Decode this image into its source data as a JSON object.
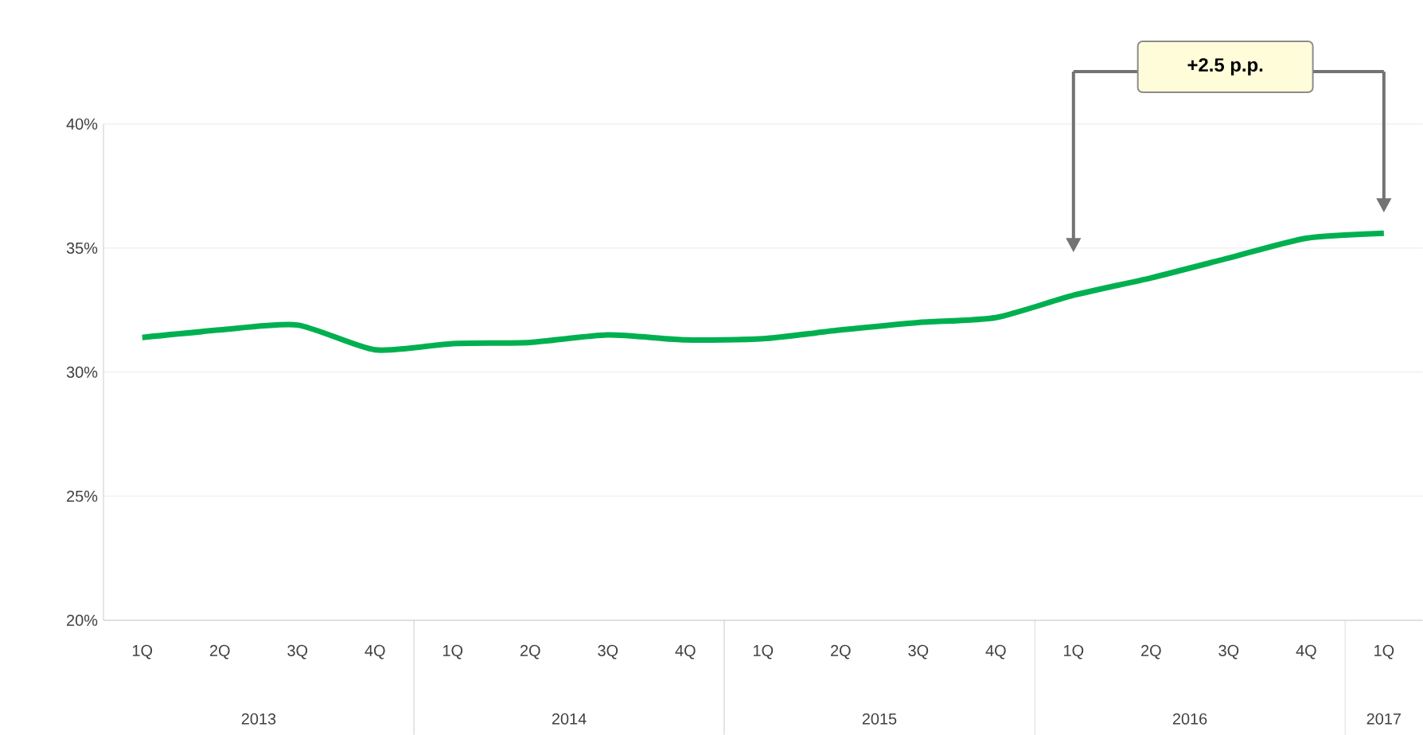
{
  "chart_data": {
    "type": "line",
    "categories": [
      "1Q",
      "2Q",
      "3Q",
      "4Q",
      "1Q",
      "2Q",
      "3Q",
      "4Q",
      "1Q",
      "2Q",
      "3Q",
      "4Q",
      "1Q",
      "2Q",
      "3Q",
      "4Q",
      "1Q"
    ],
    "series": [
      {
        "color": "#00b050",
        "values": [
          31.4,
          31.7,
          31.9,
          30.9,
          31.15,
          31.2,
          31.5,
          31.3,
          31.35,
          31.7,
          32.0,
          32.2,
          33.1,
          33.8,
          34.6,
          35.4,
          35.6
        ]
      }
    ],
    "ylim": [
      20,
      40
    ],
    "yticks": [
      {
        "value": 20,
        "label": "20%"
      },
      {
        "value": 25,
        "label": "25%"
      },
      {
        "value": 30,
        "label": "30%"
      },
      {
        "value": 35,
        "label": "35%"
      },
      {
        "value": 40,
        "label": "40%"
      }
    ],
    "grid": "y",
    "marker": "none",
    "line_style": "solid",
    "annotations": [
      "2013",
      "2014",
      "2015",
      "2016",
      "2017",
      "+2.5 p.p."
    ]
  }
}
